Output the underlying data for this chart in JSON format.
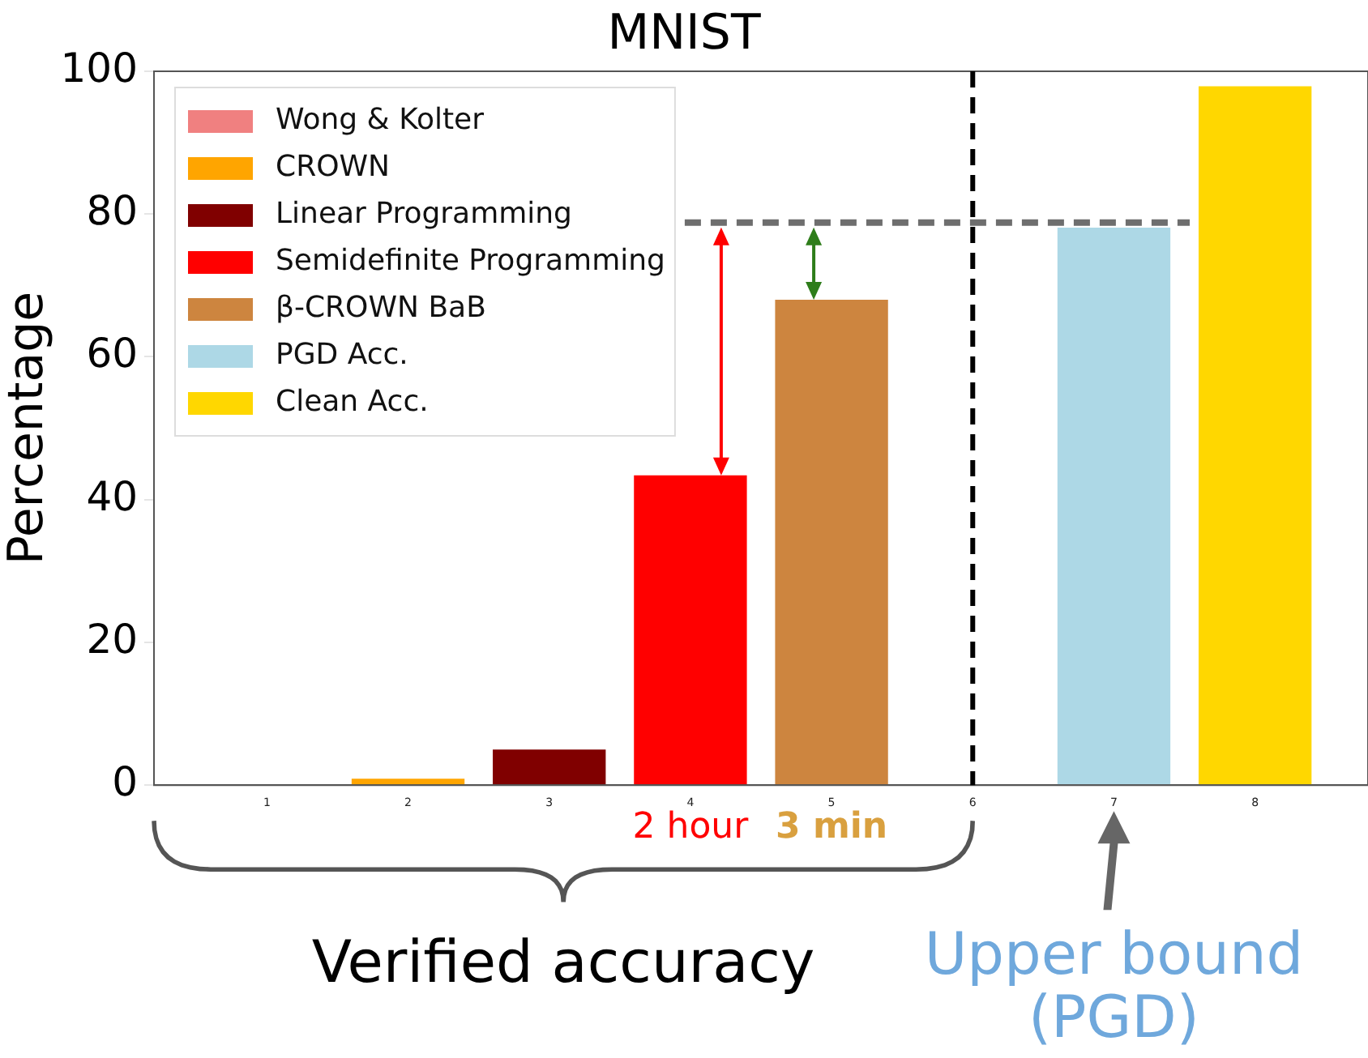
{
  "chart_data": {
    "type": "bar",
    "title": "MNIST",
    "ylabel": "Percentage",
    "xlim": [
      0.2,
      8.8
    ],
    "xticks": [
      1,
      2,
      3,
      4,
      5,
      6,
      7,
      8
    ],
    "ylim": [
      0,
      100
    ],
    "yticks": [
      0,
      20,
      40,
      60,
      80,
      100
    ],
    "series": [
      {
        "name": "Wong & Kolter",
        "color": "#f08080",
        "x": [
          1
        ],
        "values": [
          0
        ]
      },
      {
        "name": "CROWN",
        "color": "#ffa500",
        "x": [
          2
        ],
        "values": [
          0.9
        ]
      },
      {
        "name": "Linear Programming",
        "color": "#800000",
        "x": [
          3
        ],
        "values": [
          5
        ]
      },
      {
        "name": "Semidefinite Programming",
        "color": "#ff0000",
        "x": [
          4
        ],
        "values": [
          43.4
        ]
      },
      {
        "name": "β-CROWN BaB",
        "color": "#cd853f",
        "x": [
          5
        ],
        "values": [
          68
        ]
      },
      {
        "name": "PGD Acc.",
        "color": "#add8e6",
        "x": [
          7
        ],
        "values": [
          78.1
        ]
      },
      {
        "name": "Clean Acc.",
        "color": "#ffd700",
        "x": [
          8
        ],
        "values": [
          97.9
        ]
      }
    ],
    "ref_lines": [
      {
        "axis": "x",
        "value": 6,
        "color": "#000000",
        "line_style": "dashed"
      },
      {
        "axis": "y",
        "value": 78.8,
        "color": "#6e6e6e",
        "line_style": "dashed"
      }
    ],
    "annotations": [
      "2 hour",
      "3 min",
      "Verified accuracy",
      "Upper bound\n(PGD)"
    ],
    "legend": "top left",
    "grid": false
  }
}
